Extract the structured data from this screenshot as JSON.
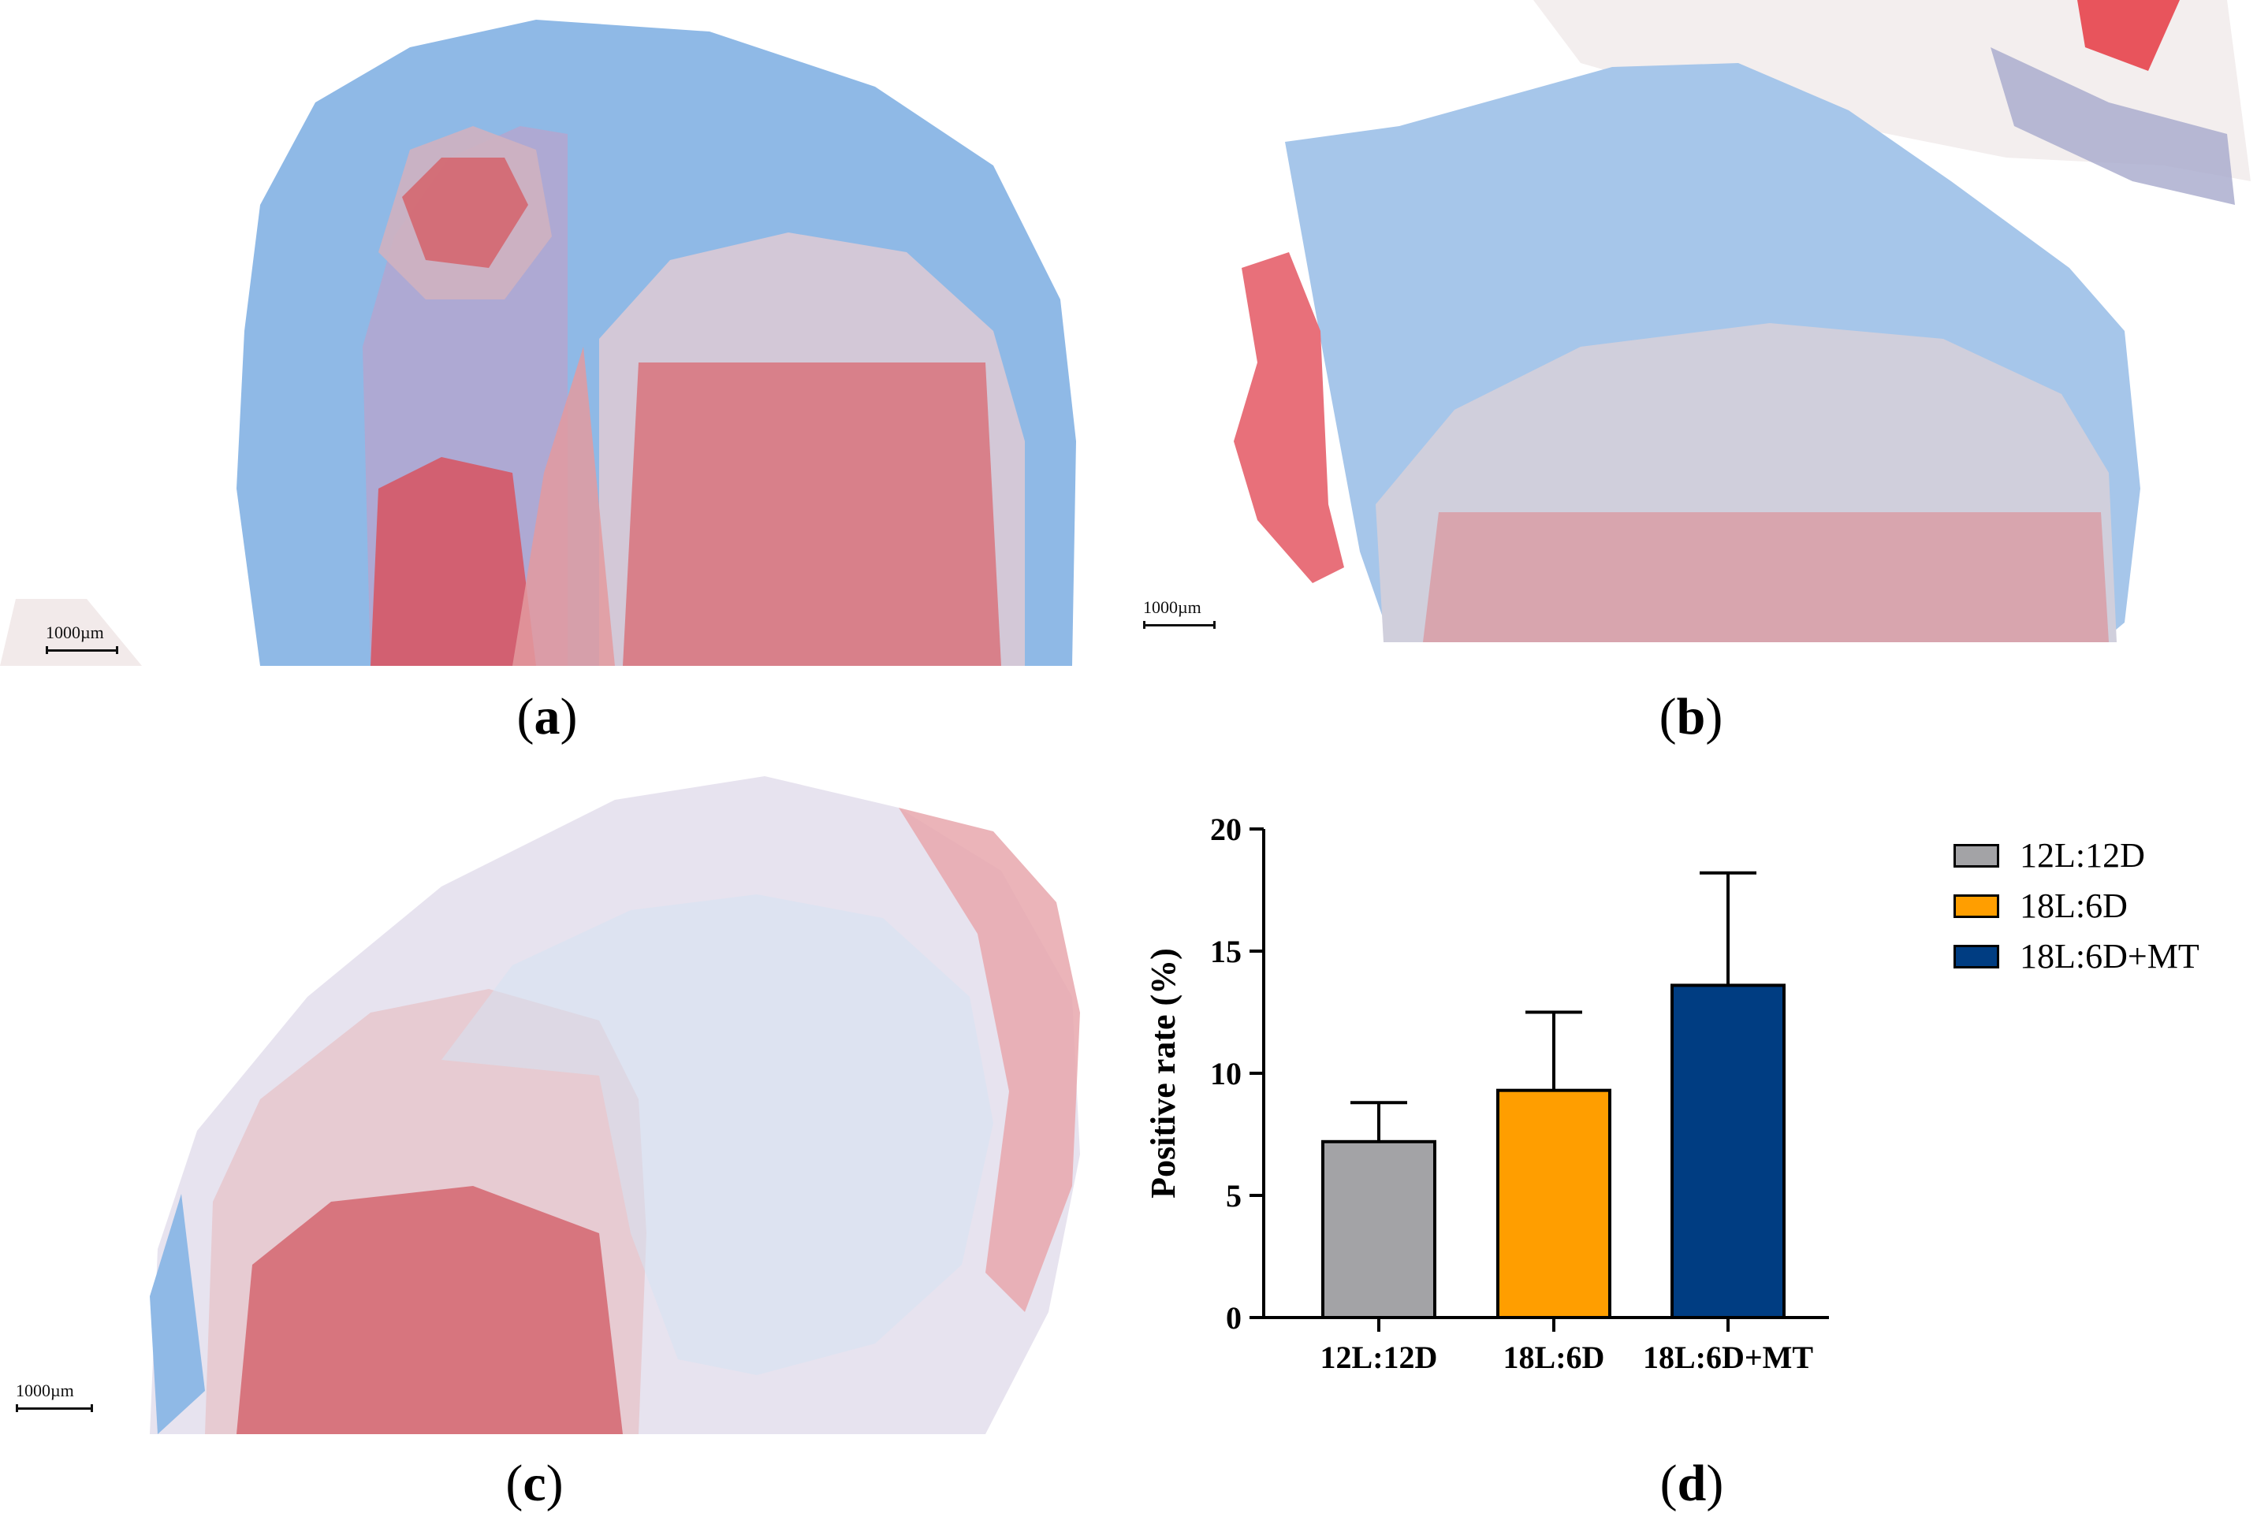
{
  "panels": {
    "a": {
      "label": "a",
      "scale": "1000µm"
    },
    "b": {
      "label": "b",
      "scale": "1000µm"
    },
    "c": {
      "label": "c",
      "scale": "1000µm"
    },
    "d": {
      "label": "d"
    }
  },
  "chart_data": {
    "type": "bar",
    "categories": [
      "12L:12D",
      "18L:6D",
      "18L:6D+MT"
    ],
    "values": [
      7.2,
      9.3,
      13.6
    ],
    "errors": [
      1.6,
      3.2,
      4.6
    ],
    "colors": [
      "#a3a3a6",
      "#ff9e00",
      "#003d82"
    ],
    "xlabel": "",
    "ylabel": "Positive rate (%)",
    "ylim": [
      0,
      20
    ],
    "yticks": [
      "0",
      "5",
      "10",
      "15",
      "20"
    ],
    "legend": {
      "position": "right",
      "entries": [
        "12L:12D",
        "18L:6D",
        "18L:6D+MT"
      ]
    }
  }
}
